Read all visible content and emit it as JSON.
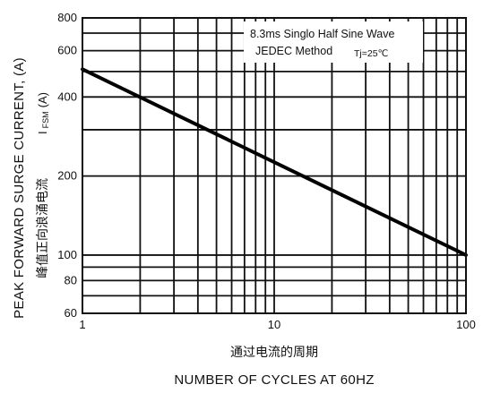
{
  "chart_data": {
    "type": "line",
    "x_scale": "log",
    "y_scale": "log",
    "xlim": [
      1,
      100
    ],
    "ylim": [
      60,
      800
    ],
    "x_ticks": [
      1,
      10,
      100
    ],
    "x_tick_labels": [
      "1",
      "10",
      "100"
    ],
    "x_minor_gridlines": [
      2,
      3,
      4,
      5,
      6,
      7,
      8,
      9,
      20,
      30,
      40,
      50,
      60,
      70,
      80,
      90
    ],
    "y_ticks": [
      60,
      80,
      100,
      200,
      400,
      600,
      800
    ],
    "y_tick_labels": [
      "60",
      "80",
      "100",
      "200",
      "400",
      "600",
      "800"
    ],
    "y_gridlines": [
      60,
      70,
      80,
      90,
      100,
      200,
      300,
      400,
      500,
      600,
      700,
      800
    ],
    "grid": true,
    "series": [
      {
        "x": [
          1,
          100
        ],
        "y": [
          510,
          100
        ]
      }
    ],
    "xlabel_cn": "通过电流的周期",
    "xlabel": "NUMBER OF CYCLES AT 60HZ",
    "ylabel": "PEAK FORWARD SURGE CURRENT, (A)",
    "ylabel_cn": "峰值正向浪涌电流",
    "ylabel_symbol": "I",
    "ylabel_symbol_sub": "FSM",
    "ylabel_unit": "(A)",
    "annotation": {
      "line1": "8.3ms Singlo Half Sine Wave",
      "line2": "JEDEC Method",
      "line3": "Tj=25℃"
    },
    "colors": {
      "grid": "#111111",
      "line": "#000000",
      "background": "#ffffff"
    }
  }
}
